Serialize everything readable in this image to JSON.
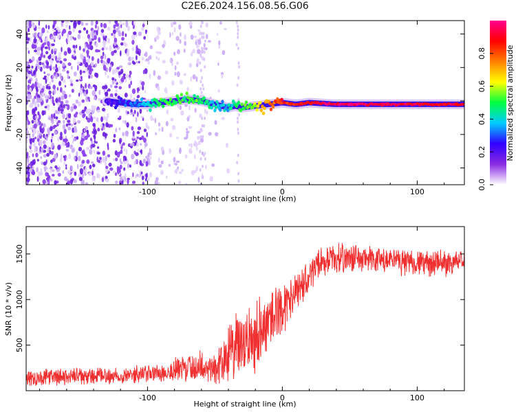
{
  "title": "C2E6.2024.156.08.56.G06",
  "chart_data": [
    {
      "type": "heatmap",
      "xlabel": "Height of straight line (km)",
      "ylabel": "Frequency (Hz)",
      "xlim": [
        -190,
        135
      ],
      "ylim": [
        -50,
        48
      ],
      "x_ticks": [
        -100,
        0,
        100
      ],
      "y_ticks": [
        -40,
        -20,
        0,
        20,
        40
      ],
      "colorbar": {
        "label": "Normalized spectral amplitude",
        "range": [
          0,
          1
        ],
        "ticks": [
          "0.0",
          "0.2",
          "0.4",
          "0.6",
          "0.8"
        ],
        "colormap": [
          "#ffffff",
          "#8a2be2",
          "#3000ff",
          "#00ccff",
          "#00ff40",
          "#ffff00",
          "#ff8000",
          "#ff0000",
          "#ff0090"
        ]
      },
      "ridge": {
        "description_x_range": [
          -132,
          135
        ],
        "x": [
          -130,
          -110,
          -100,
          -90,
          -80,
          -70,
          -60,
          -50,
          -45,
          -40,
          -35,
          -30,
          -20,
          -10,
          0,
          10,
          20,
          40,
          60,
          80,
          100,
          120,
          135
        ],
        "frequency": [
          0,
          -2,
          -2,
          -1,
          0,
          1,
          0,
          -2,
          -3,
          -4,
          -3,
          -4,
          -3,
          -2,
          -1,
          -2,
          -1,
          -2,
          -2,
          -2,
          -2,
          -2,
          -2
        ],
        "amplitude": [
          0.2,
          0.3,
          0.4,
          0.5,
          0.5,
          0.5,
          0.5,
          0.4,
          0.35,
          0.4,
          0.45,
          0.5,
          0.6,
          0.75,
          0.85,
          0.85,
          0.9,
          0.95,
          0.95,
          0.95,
          0.9,
          0.9,
          0.9
        ]
      }
    },
    {
      "type": "line",
      "xlabel": "Height of straight line (km)",
      "ylabel": "SNR (10 * v/v)",
      "xlim": [
        -190,
        135
      ],
      "ylim": [
        0,
        1800
      ],
      "x_ticks": [
        -100,
        0,
        100
      ],
      "y_ticks": [
        500,
        1000,
        1500
      ],
      "series": [
        {
          "color": "#f03030",
          "trend_x": [
            -190,
            -160,
            -130,
            -110,
            -95,
            -80,
            -70,
            -60,
            -50,
            -45,
            -40,
            -35,
            -30,
            -25,
            -20,
            -15,
            -10,
            -5,
            0,
            5,
            10,
            15,
            20,
            25,
            30,
            40,
            50,
            60,
            70,
            80,
            90,
            100,
            110,
            120,
            135
          ],
          "trend_y": [
            140,
            150,
            160,
            175,
            190,
            220,
            250,
            270,
            240,
            330,
            400,
            480,
            460,
            560,
            600,
            700,
            760,
            860,
            900,
            980,
            1050,
            1150,
            1250,
            1380,
            1420,
            1450,
            1460,
            1440,
            1430,
            1420,
            1420,
            1410,
            1390,
            1400,
            1420
          ],
          "spread": [
            90,
            90,
            90,
            90,
            100,
            140,
            160,
            170,
            170,
            240,
            300,
            360,
            360,
            380,
            380,
            380,
            340,
            300,
            260,
            240,
            220,
            200,
            170,
            160,
            150,
            150,
            150,
            150,
            150,
            140,
            140,
            140,
            140,
            140,
            140
          ]
        }
      ]
    }
  ]
}
